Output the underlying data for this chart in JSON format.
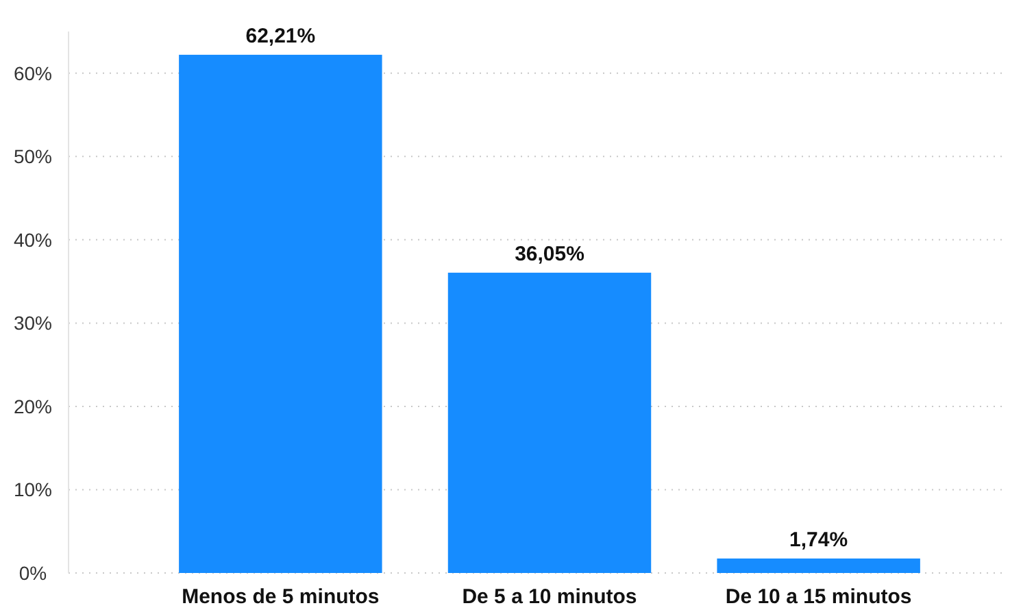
{
  "chart_data": {
    "type": "bar",
    "categories": [
      "Menos de 5 minutos",
      "De 5 a 10 minutos",
      "De 10 a 15 minutos"
    ],
    "values": [
      62.21,
      36.05,
      1.74
    ],
    "value_labels": [
      "62,21%",
      "36,05%",
      "1,74%"
    ],
    "color": "#168cff",
    "ylim": [
      0,
      65
    ],
    "yticks": [
      {
        "value": 0,
        "label": "0%"
      },
      {
        "value": 10,
        "label": "10%"
      },
      {
        "value": 20,
        "label": "20%"
      },
      {
        "value": 30,
        "label": "30%"
      },
      {
        "value": 40,
        "label": "40%"
      },
      {
        "value": 50,
        "label": "50%"
      },
      {
        "value": 60,
        "label": "60%"
      }
    ],
    "grid": "y"
  }
}
